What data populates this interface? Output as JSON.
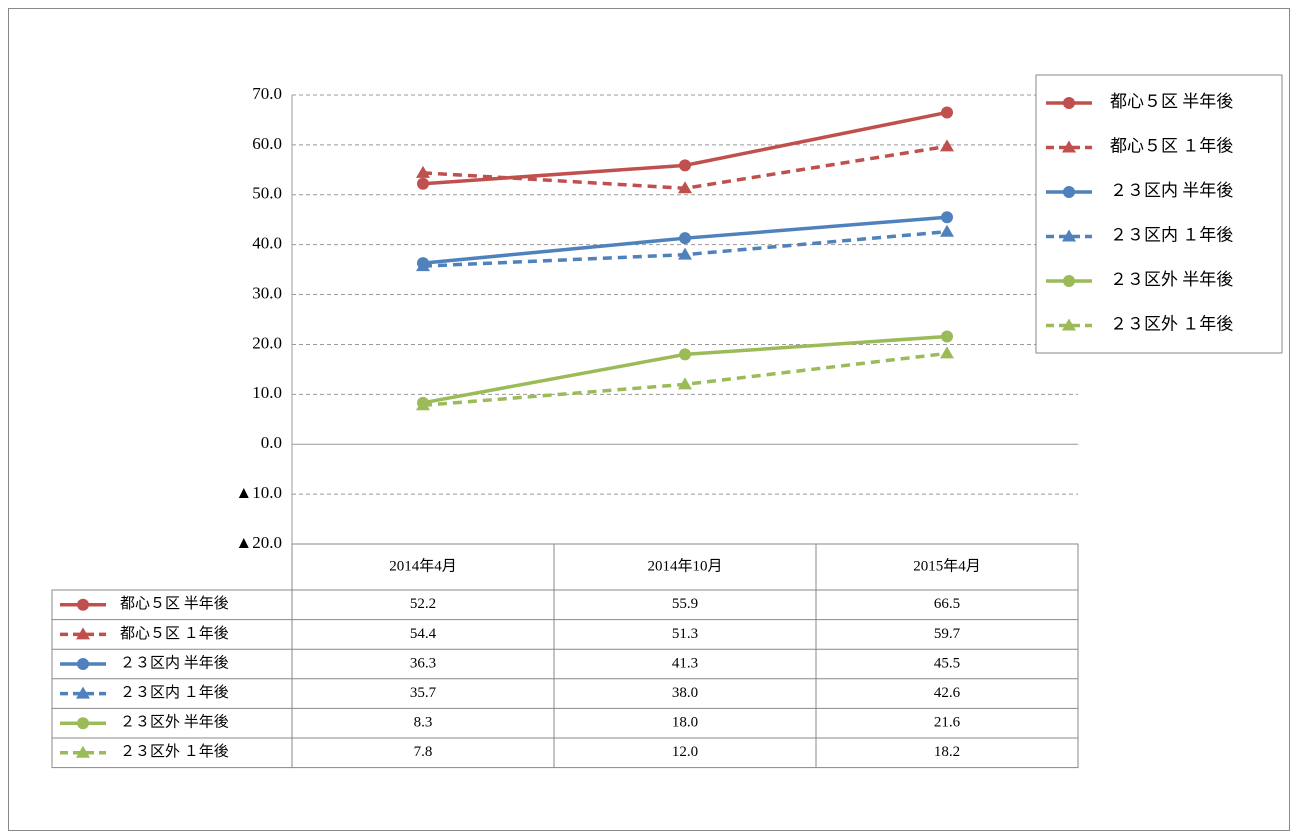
{
  "chart_data": {
    "type": "line",
    "categories": [
      "2014年4月",
      "2014年10月",
      "2015年4月"
    ],
    "series": [
      {
        "name": "都心５区 半年後",
        "color": "#c0504d",
        "dash": false,
        "marker": "circle",
        "values": [
          52.2,
          55.9,
          66.5
        ],
        "value_labels": [
          "52.2",
          "55.9",
          "66.5"
        ]
      },
      {
        "name": "都心５区 １年後",
        "color": "#c0504d",
        "dash": true,
        "marker": "triangle",
        "values": [
          54.4,
          51.3,
          59.7
        ],
        "value_labels": [
          "54.4",
          "51.3",
          "59.7"
        ]
      },
      {
        "name": "２３区内 半年後",
        "color": "#4f81bd",
        "dash": false,
        "marker": "circle",
        "values": [
          36.3,
          41.3,
          45.5
        ],
        "value_labels": [
          "36.3",
          "41.3",
          "45.5"
        ]
      },
      {
        "name": "２３区内 １年後",
        "color": "#4f81bd",
        "dash": true,
        "marker": "triangle",
        "values": [
          35.7,
          38.0,
          42.6
        ],
        "value_labels": [
          "35.7",
          "38.0",
          "42.6"
        ]
      },
      {
        "name": "２３区外 半年後",
        "color": "#9bbb59",
        "dash": false,
        "marker": "circle",
        "values": [
          8.3,
          18.0,
          21.6
        ],
        "value_labels": [
          "8.3",
          "18.0",
          "21.6"
        ]
      },
      {
        "name": "２３区外 １年後",
        "color": "#9bbb59",
        "dash": true,
        "marker": "triangle",
        "values": [
          7.8,
          12.0,
          18.2
        ],
        "value_labels": [
          "7.8",
          "12.0",
          "18.2"
        ]
      }
    ],
    "ylim": [
      -20,
      70
    ],
    "yticks": [
      {
        "value": -20,
        "label": "▲20.0"
      },
      {
        "value": -10,
        "label": "▲10.0"
      },
      {
        "value": 0,
        "label": "0.0"
      },
      {
        "value": 10,
        "label": "10.0"
      },
      {
        "value": 20,
        "label": "20.0"
      },
      {
        "value": 30,
        "label": "30.0"
      },
      {
        "value": 40,
        "label": "40.0"
      },
      {
        "value": 50,
        "label": "50.0"
      },
      {
        "value": 60,
        "label": "60.0"
      },
      {
        "value": 70,
        "label": "70.0"
      }
    ],
    "grid": true,
    "legend": "right",
    "data_table": true
  }
}
